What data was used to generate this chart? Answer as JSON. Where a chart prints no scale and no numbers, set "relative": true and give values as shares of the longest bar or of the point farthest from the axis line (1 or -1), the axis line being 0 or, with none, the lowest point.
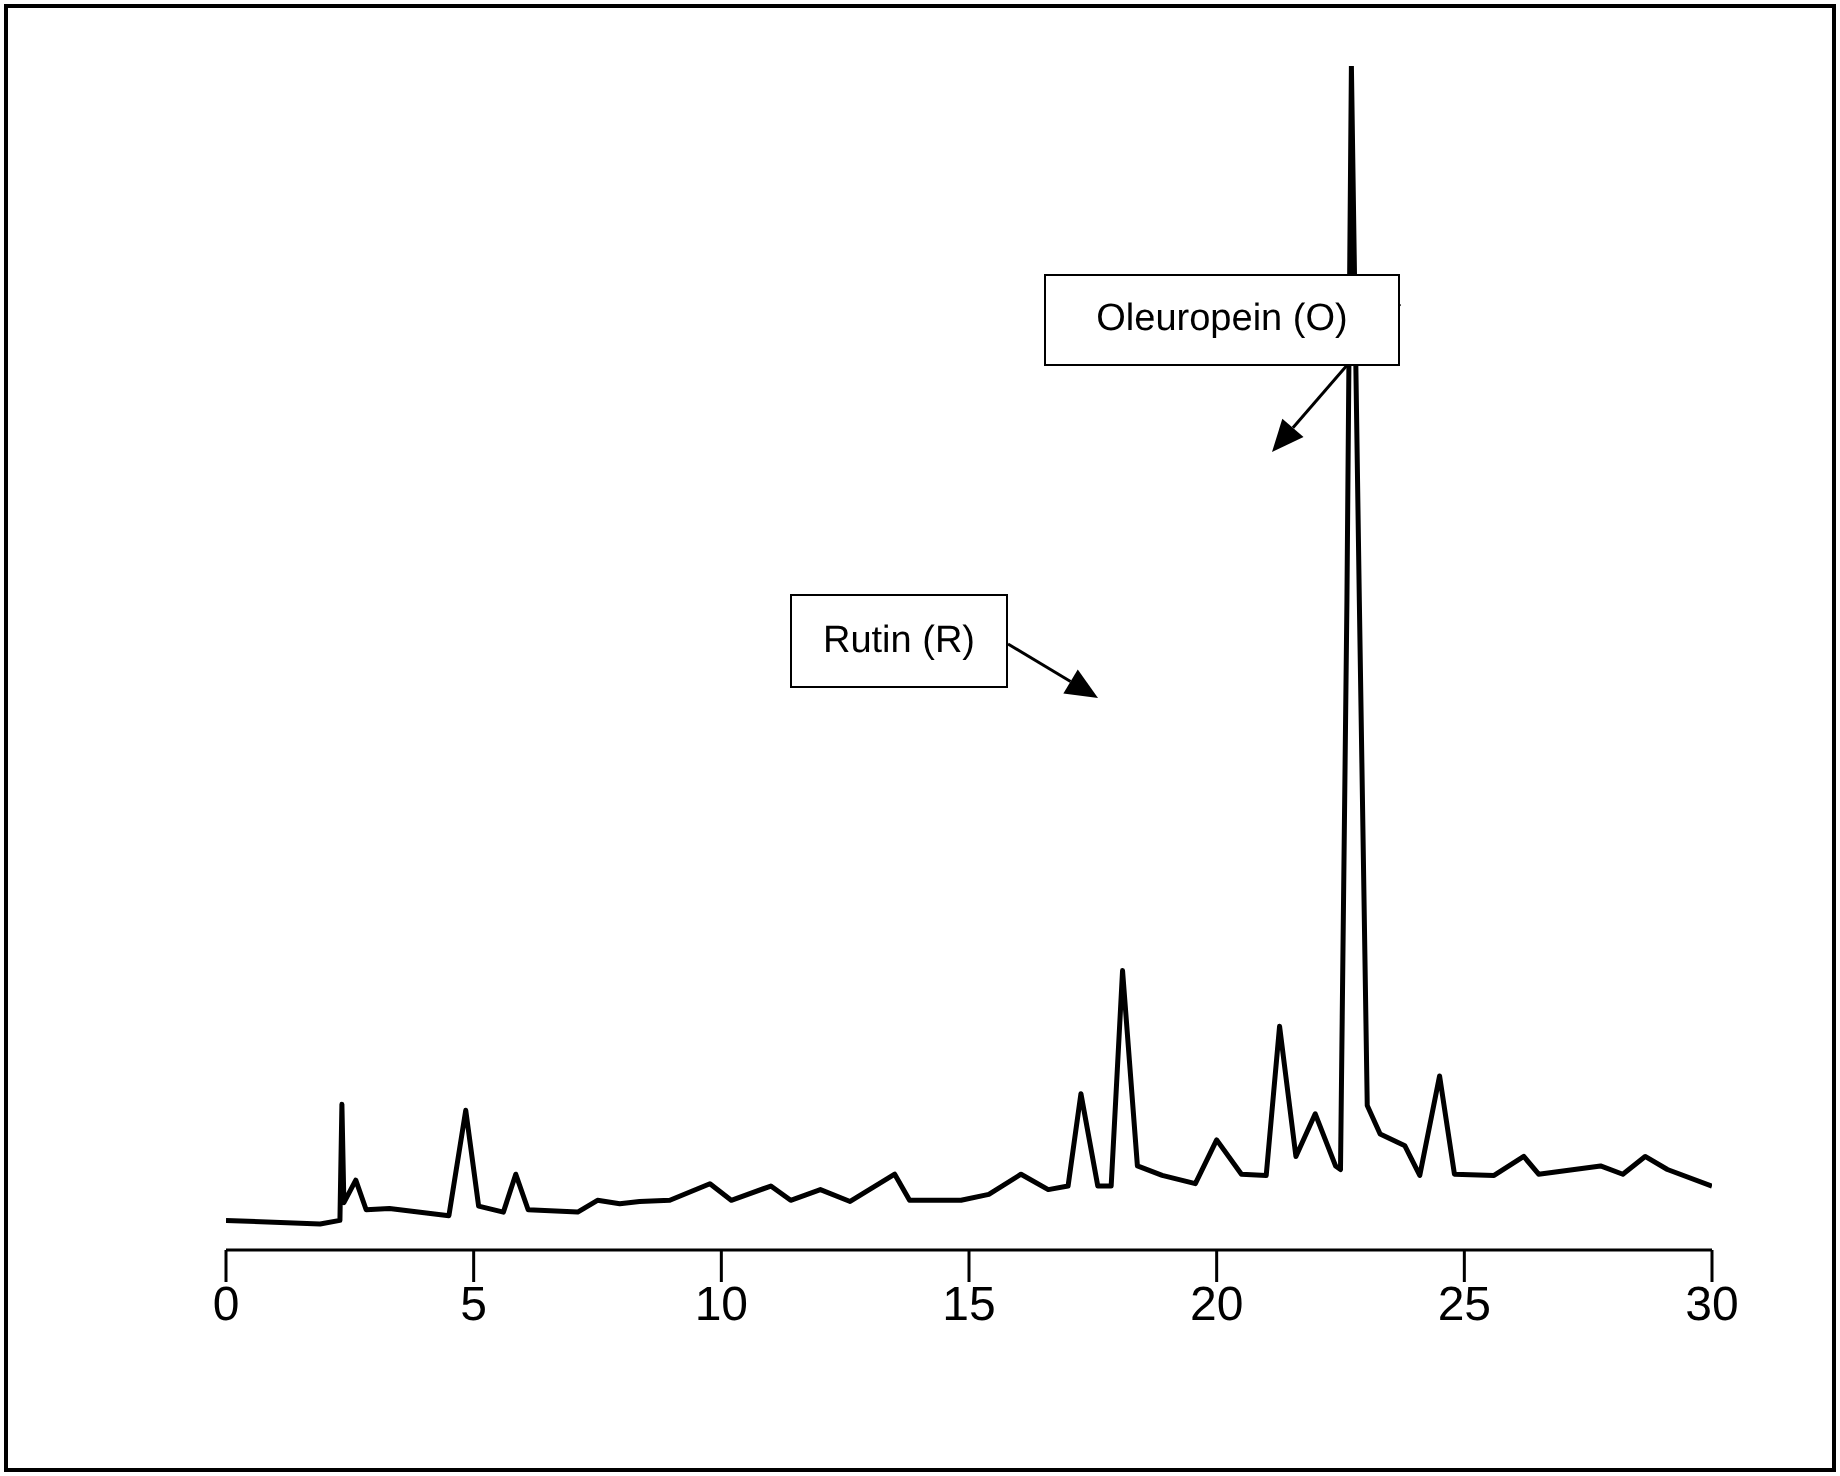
{
  "chart_data": {
    "type": "line",
    "relative": true,
    "xlim": [
      0,
      30
    ],
    "xticks": [
      0,
      5,
      10,
      15,
      20,
      25,
      30
    ],
    "annotations": [
      "Oleuropein (O)",
      "Rutin (R)"
    ],
    "series": [
      {
        "color": "#000000",
        "x": [
          0,
          1.9,
          2.3,
          2.34,
          2.38,
          2.62,
          2.83,
          3.3,
          4.5,
          4.84,
          5.1,
          5.6,
          5.85,
          6.1,
          7.1,
          7.5,
          7.95,
          8.35,
          8.96,
          9.77,
          10.2,
          11.0,
          11.4,
          12.0,
          12.6,
          13.5,
          13.8,
          14.84,
          15.4,
          16.05,
          16.6,
          17.0,
          17.26,
          17.6,
          17.87,
          18.1,
          18.4,
          18.9,
          19.57,
          20.0,
          20.5,
          21.0,
          21.27,
          21.6,
          21.99,
          22.4,
          22.5,
          22.63,
          22.72,
          22.88,
          23.04,
          23.3,
          23.8,
          24.1,
          24.5,
          24.8,
          25.6,
          26.2,
          26.5,
          27.75,
          28.2,
          28.65,
          29.1,
          30
        ],
        "values": [
          0.025,
          0.022,
          0.025,
          0.123,
          0.04,
          0.059,
          0.034,
          0.035,
          0.029,
          0.118,
          0.037,
          0.032,
          0.064,
          0.034,
          0.032,
          0.042,
          0.039,
          0.041,
          0.042,
          0.056,
          0.042,
          0.054,
          0.042,
          0.051,
          0.041,
          0.064,
          0.042,
          0.042,
          0.047,
          0.064,
          0.051,
          0.054,
          0.132,
          0.054,
          0.054,
          0.236,
          0.071,
          0.063,
          0.056,
          0.093,
          0.064,
          0.063,
          0.189,
          0.079,
          0.115,
          0.071,
          0.068,
          0.549,
          1.0,
          0.549,
          0.122,
          0.098,
          0.088,
          0.063,
          0.147,
          0.064,
          0.063,
          0.079,
          0.064,
          0.071,
          0.064,
          0.079,
          0.068,
          0.054
        ]
      }
    ]
  }
}
